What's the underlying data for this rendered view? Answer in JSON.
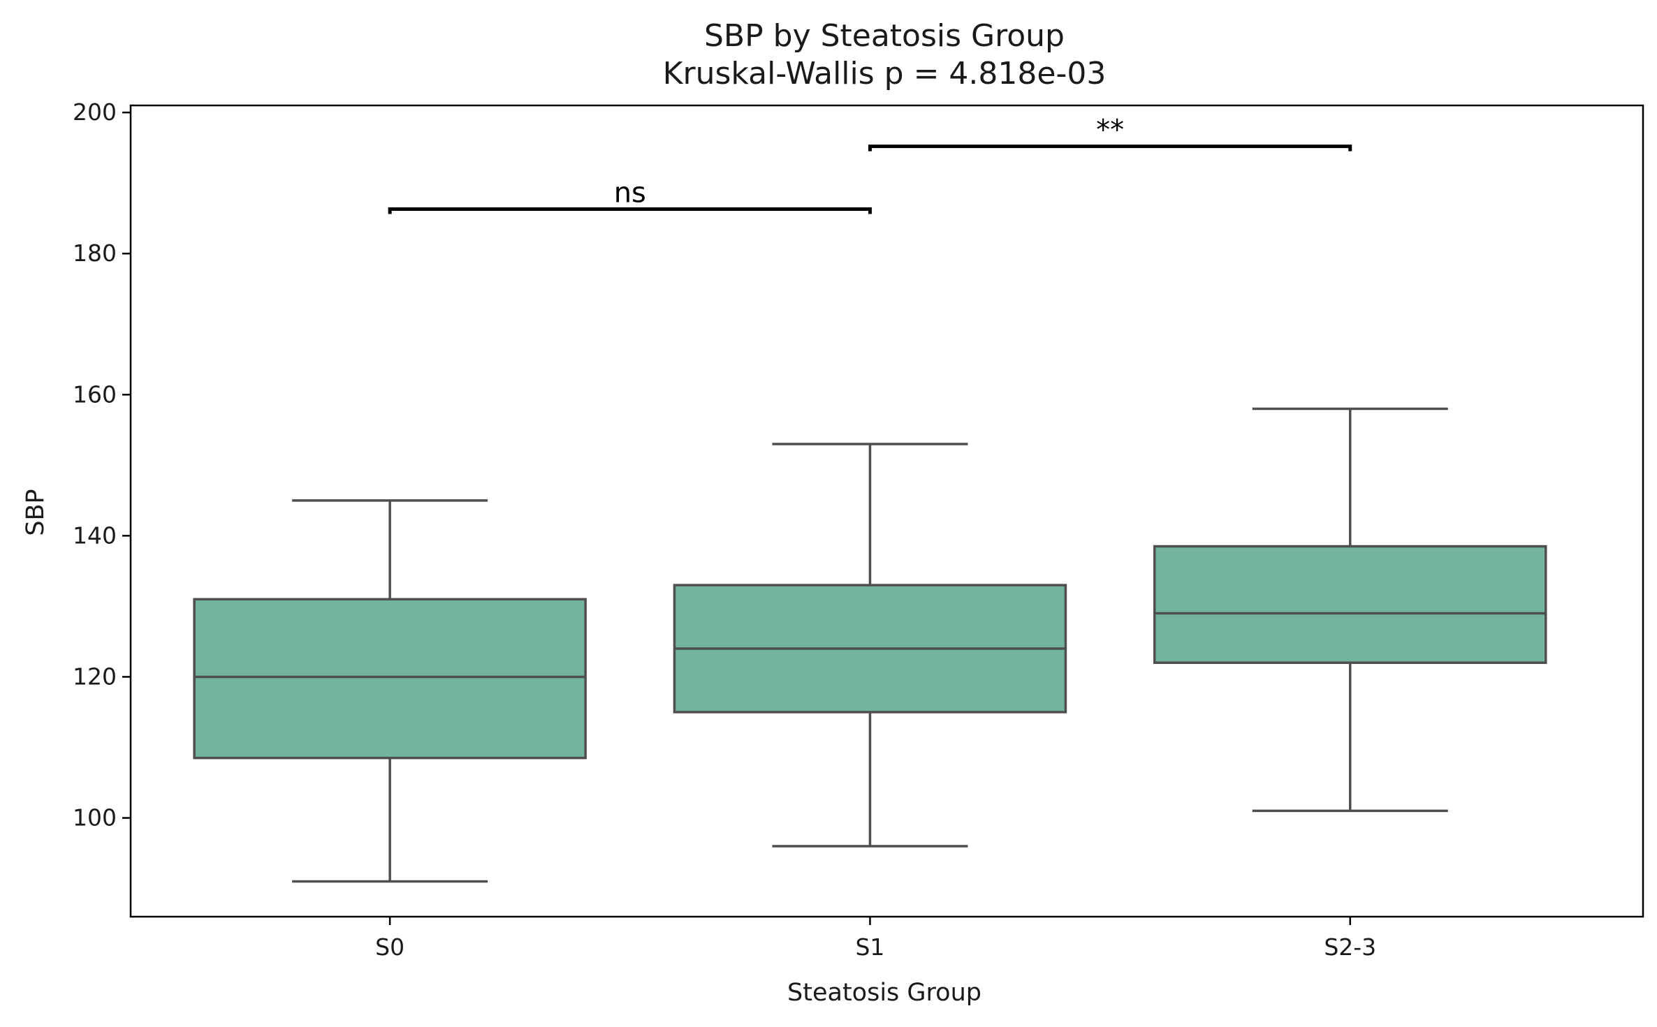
{
  "chart_data": {
    "type": "box",
    "title": "SBP by Steatosis Group",
    "subtitle": "Kruskal-Wallis p = 4.818e-03",
    "xlabel": "Steatosis Group",
    "ylabel": "SBP",
    "ylim": [
      86,
      201
    ],
    "yticks": [
      100,
      120,
      140,
      160,
      180,
      200
    ],
    "categories": [
      "S0",
      "S1",
      "S2-3"
    ],
    "boxes": [
      {
        "category": "S0",
        "whisker_low": 91,
        "q1": 108.5,
        "median": 120,
        "q3": 131,
        "whisker_high": 145
      },
      {
        "category": "S1",
        "whisker_low": 96,
        "q1": 115,
        "median": 124,
        "q3": 133,
        "whisker_high": 153
      },
      {
        "category": "S2-3",
        "whisker_low": 101,
        "q1": 122,
        "median": 129,
        "q3": 138.5,
        "whisker_high": 158
      }
    ],
    "comparisons": [
      {
        "from": "S0",
        "to": "S1",
        "y": 186.3,
        "label": "ns"
      },
      {
        "from": "S1",
        "to": "S2-3",
        "y": 195.2,
        "label": "**"
      }
    ],
    "grid": false,
    "colors": {
      "box_fill": "#73b5a0",
      "box_edge": "#4f4f4f",
      "bracket": "#000000"
    }
  }
}
